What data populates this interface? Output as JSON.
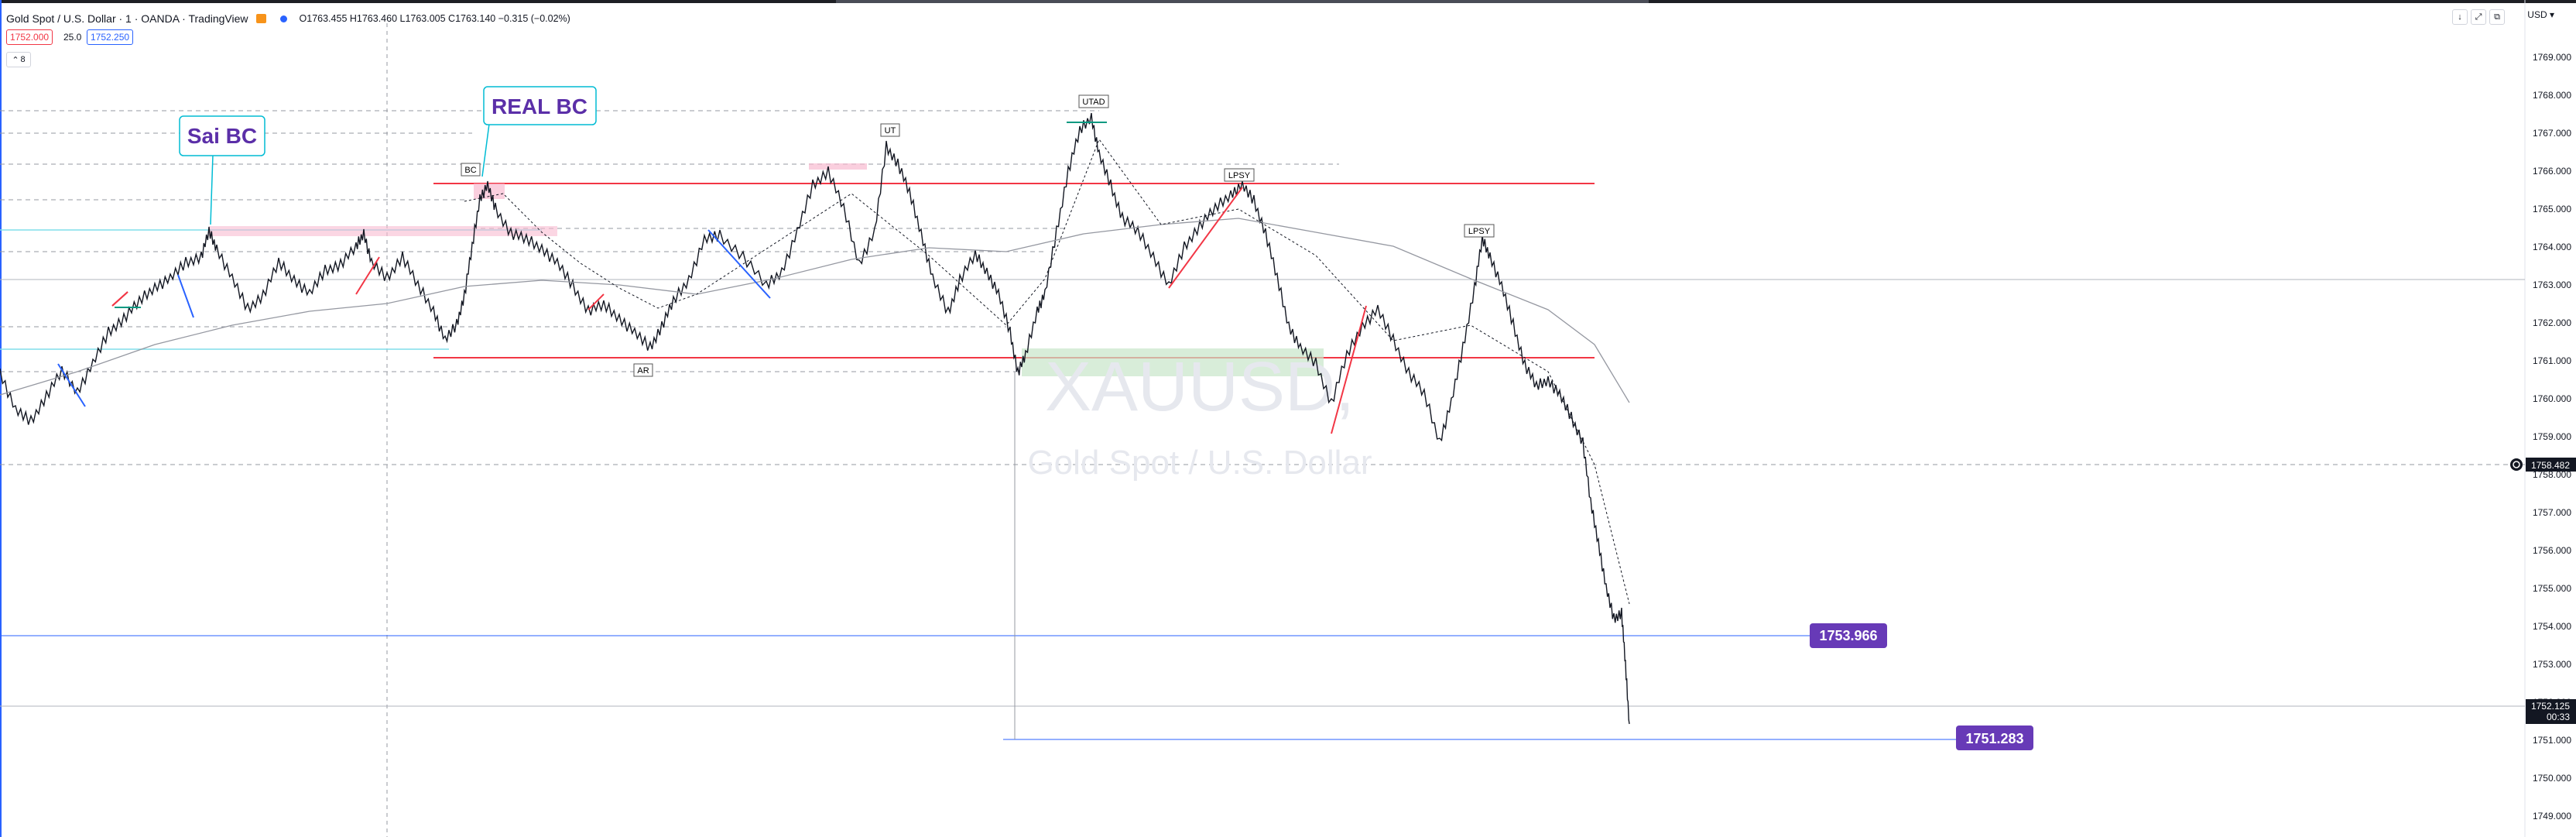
{
  "header": {
    "title": "Gold Spot / U.S. Dollar · 1 · OANDA · TradingView",
    "ohlc": "O1763.455  H1763.460  L1763.005  C1763.140  −0.315 (−0.02%)",
    "sell_price": "1752.000",
    "spread": "25.0",
    "buy_price": "1752.250",
    "collapse_label": "8",
    "currency": "USD"
  },
  "watermark": {
    "symbol": "XAUUSD,",
    "description": "Gold Spot / U.S. Dollar"
  },
  "annotations": {
    "sai_bc": "Sai BC",
    "real_bc": "REAL BC",
    "bc": "BC",
    "ar": "AR",
    "ut": "UT",
    "utad": "UTAD",
    "lpsy1": "LPSY",
    "lpsy2": "LPSY",
    "level_1": "1753.966",
    "level_2": "1751.283"
  },
  "price_axis": {
    "ticks": [
      "1769.000",
      "1768.000",
      "1767.000",
      "1766.000",
      "1765.000",
      "1764.000",
      "1763.000",
      "1762.000",
      "1761.000",
      "1760.000",
      "1759.000",
      "1758.000",
      "1757.000",
      "1756.000",
      "1755.000",
      "1754.000",
      "1753.000",
      "1752.000",
      "1751.000",
      "1750.000",
      "1749.000"
    ],
    "crosshair_price": "1758.482",
    "last_price": "1752.125",
    "countdown": "00:33"
  },
  "colors": {
    "bull_line": "#2962ff",
    "bear_line": "#f23645",
    "annotation_purple": "#5b2fa8",
    "label_box": "#673ab7"
  },
  "icons": {
    "flag": "orange-flag-icon",
    "status": "blue-dot-icon",
    "collapse": "chevron-up-icon",
    "arrow_down": "arrow-down-icon",
    "fullscreen": "fullscreen-icon",
    "restore": "restore-icon",
    "crosshair": "crosshair-target-icon"
  }
}
